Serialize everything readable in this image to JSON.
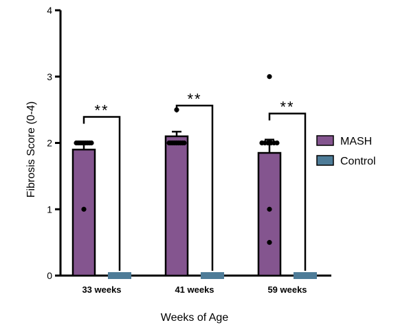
{
  "colors": {
    "mash": "#84558F",
    "control": "#4E7C98",
    "axis": "#000000"
  },
  "chart_data": {
    "type": "bar",
    "title": "",
    "xlabel": "Weeks of Age",
    "ylabel": "Fibrosis Score (0-4)",
    "ylim": [
      0,
      4
    ],
    "yticks": [
      "0",
      "1",
      "2",
      "3",
      "4"
    ],
    "categories": [
      "33 weeks",
      "41 weeks",
      "59 weeks"
    ],
    "legend_position": "right",
    "series": [
      {
        "name": "MASH",
        "values": [
          1.9,
          2.1,
          1.85
        ],
        "error": [
          0.1,
          0.07,
          0.2
        ],
        "points": [
          [
            2,
            2,
            2,
            2,
            2,
            2,
            2,
            2,
            2,
            1
          ],
          [
            2.5,
            2,
            2,
            2,
            2,
            2,
            2,
            2,
            2,
            2
          ],
          [
            3,
            2,
            2,
            2,
            2,
            2,
            2,
            1,
            0.5
          ]
        ]
      },
      {
        "name": "Control",
        "values": [
          0,
          0,
          0
        ]
      }
    ],
    "significance": [
      "**",
      "**",
      "**"
    ]
  }
}
